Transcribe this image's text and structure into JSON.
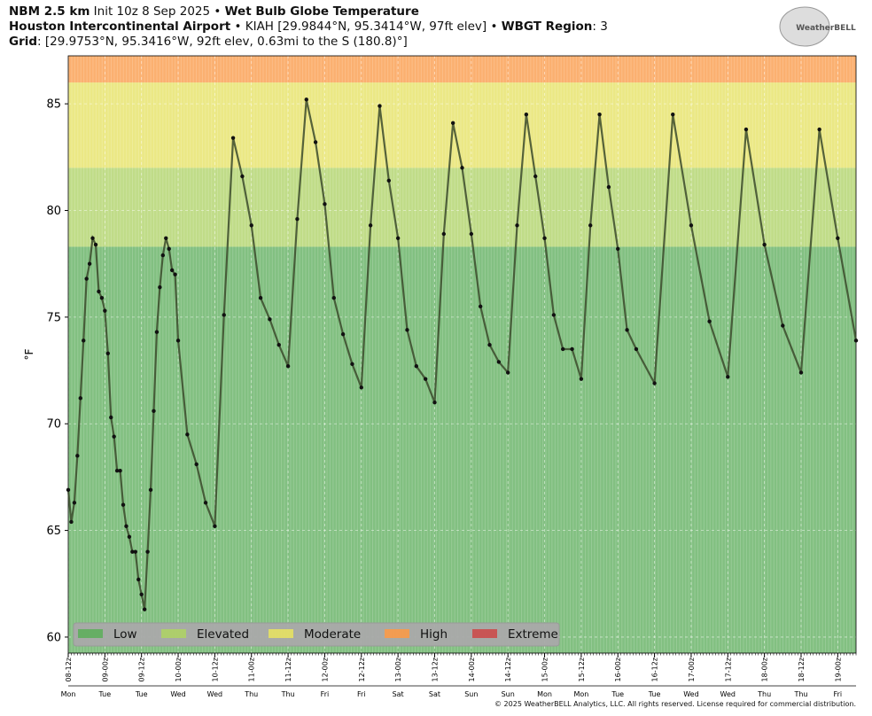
{
  "chart_data": {
    "type": "line",
    "title_lines": [
      [
        {
          "text": "NBM 2.5 km",
          "bold": true
        },
        {
          "text": " Init 10z 8 Sep 2025 • ",
          "bold": false
        },
        {
          "text": "Wet Bulb Globe Temperature",
          "bold": true
        }
      ],
      [
        {
          "text": "Houston Intercontinental Airport",
          "bold": true
        },
        {
          "text": " • KIAH [29.9844°N, 95.3414°W, 97ft elev] • ",
          "bold": false
        },
        {
          "text": "WBGT Region",
          "bold": true
        },
        {
          "text": ": 3",
          "bold": false
        }
      ],
      [
        {
          "text": "Grid",
          "bold": true
        },
        {
          "text": ": [29.9753°N, 95.3416°W, 92ft elev, 0.63mi to the S (180.8)°]",
          "bold": false
        }
      ]
    ],
    "logo": "WeatherBELL",
    "footer": "© 2025 WeatherBELL Analytics, LLC. All rights reserved. License required for commercial distribution.",
    "ylabel": "°F",
    "ylim": [
      59.25,
      87.25
    ],
    "yticks": [
      60,
      65,
      70,
      75,
      80,
      85
    ],
    "xlim": [
      "08-12z",
      "19-06z"
    ],
    "xticks": [
      "08-12z",
      "09-00z",
      "09-12z",
      "10-00z",
      "10-12z",
      "11-00z",
      "11-12z",
      "12-00z",
      "12-12z",
      "13-00z",
      "13-12z",
      "14-00z",
      "14-12z",
      "15-00z",
      "15-12z",
      "16-00z",
      "16-12z",
      "17-00z",
      "17-12z",
      "18-00z",
      "18-12z",
      "19-00z"
    ],
    "xtick_days": [
      "Mon",
      "Tue",
      "Tue",
      "Wed",
      "Wed",
      "Thu",
      "Thu",
      "Fri",
      "Fri",
      "Sat",
      "Sat",
      "Sun",
      "Sun",
      "Mon",
      "Mon",
      "Tue",
      "Tue",
      "Wed",
      "Wed",
      "Thu",
      "Thu",
      "Fri"
    ],
    "grid": true,
    "bands": [
      {
        "name": "Low",
        "color": "#5fae5d",
        "from": null
      },
      {
        "name": "Elevated",
        "color": "#aed266",
        "from": 78.3
      },
      {
        "name": "Moderate",
        "color": "#e6e163",
        "from": 82
      },
      {
        "name": "High",
        "color": "#fa9a48",
        "from": 86
      },
      {
        "name": "Extreme",
        "color": "#cc4b4b",
        "from": null
      }
    ],
    "series": [
      {
        "color": "#3b4a2c",
        "x": [
          "08-12z",
          "08-13z",
          "08-14z",
          "08-15z",
          "08-16z",
          "08-17z",
          "08-18z",
          "08-19z",
          "08-20z",
          "08-21z",
          "08-22z",
          "08-23z",
          "09-00z",
          "09-01z",
          "09-02z",
          "09-03z",
          "09-04z",
          "09-05z",
          "09-06z",
          "09-07z",
          "09-08z",
          "09-09z",
          "09-10z",
          "09-11z",
          "09-12z",
          "09-13z",
          "09-14z",
          "09-15z",
          "09-16z",
          "09-17z",
          "09-18z",
          "09-19z",
          "09-20z",
          "09-21z",
          "09-22z",
          "09-23z",
          "10-00z",
          "10-03z",
          "10-06z",
          "10-09z",
          "10-12z",
          "10-15z",
          "10-18z",
          "10-21z",
          "11-00z",
          "11-03z",
          "11-06z",
          "11-09z",
          "11-12z",
          "11-15z",
          "11-18z",
          "11-21z",
          "12-00z",
          "12-03z",
          "12-06z",
          "12-09z",
          "12-12z",
          "12-15z",
          "12-18z",
          "12-21z",
          "13-00z",
          "13-03z",
          "13-06z",
          "13-09z",
          "13-12z",
          "13-15z",
          "13-18z",
          "13-21z",
          "14-00z",
          "14-03z",
          "14-06z",
          "14-09z",
          "14-12z",
          "14-15z",
          "14-18z",
          "14-21z",
          "15-00z",
          "15-03z",
          "15-06z",
          "15-09z",
          "15-12z",
          "15-15z",
          "15-18z",
          "15-21z",
          "16-00z",
          "16-03z",
          "16-06z",
          "16-12z",
          "16-18z",
          "17-00z",
          "17-06z",
          "17-12z",
          "17-18z",
          "18-00z",
          "18-06z",
          "18-12z",
          "18-18z",
          "19-00z",
          "19-06z"
        ],
        "values": [
          66.9,
          65.4,
          66.3,
          68.5,
          71.2,
          73.9,
          76.8,
          77.5,
          78.7,
          78.4,
          76.2,
          75.9,
          75.3,
          73.3,
          70.3,
          69.4,
          67.8,
          67.8,
          66.2,
          65.2,
          64.7,
          64.0,
          64.0,
          62.7,
          62.0,
          61.3,
          64.0,
          66.9,
          70.6,
          74.3,
          76.4,
          77.9,
          78.7,
          78.2,
          77.2,
          77.0,
          73.9,
          69.5,
          68.1,
          66.3,
          65.2,
          75.1,
          83.4,
          81.6,
          79.3,
          75.9,
          74.9,
          73.7,
          72.7,
          79.6,
          85.2,
          83.2,
          80.3,
          75.9,
          74.2,
          72.8,
          71.7,
          79.3,
          84.9,
          81.4,
          78.7,
          74.4,
          72.7,
          72.1,
          71.0,
          78.9,
          84.1,
          82.0,
          78.9,
          75.5,
          73.7,
          72.9,
          72.4,
          79.3,
          84.5,
          81.6,
          78.7,
          75.1,
          73.5,
          73.5,
          72.1,
          79.3,
          84.5,
          81.1,
          78.2,
          74.4,
          73.5,
          71.9,
          84.5,
          79.3,
          74.8,
          72.2,
          83.8,
          78.4,
          74.6,
          72.4,
          83.8,
          78.7,
          73.9
        ]
      }
    ]
  }
}
